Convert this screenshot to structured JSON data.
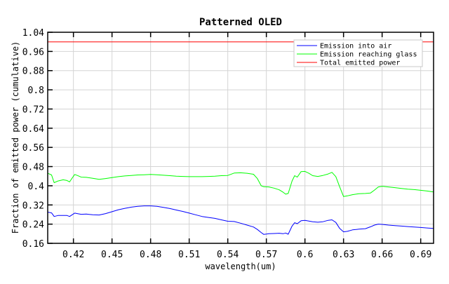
{
  "chart_data": {
    "type": "line",
    "title": "Patterned OLED",
    "xlabel": "wavelength(um)",
    "ylabel": "Fraction of emitted power (cumulative)",
    "xlim": [
      0.4,
      0.7
    ],
    "ylim": [
      0.16,
      1.04
    ],
    "xticks": [
      0.42,
      0.45,
      0.48,
      0.51,
      0.54,
      0.57,
      0.6,
      0.63,
      0.66,
      0.69
    ],
    "xtick_labels": [
      "0.42",
      "0.45",
      "0.48",
      "0.51",
      "0.54",
      "0.57",
      "0.6",
      "0.63",
      "0.66",
      "0.69"
    ],
    "yticks": [
      0.16,
      0.24,
      0.32,
      0.4,
      0.48,
      0.56,
      0.64,
      0.72,
      0.8,
      0.88,
      0.96,
      1.04
    ],
    "ytick_labels": [
      "0.16",
      "0.24",
      "0.32",
      "0.4",
      "0.48",
      "0.56",
      "0.64",
      "0.72",
      "0.8",
      "0.88",
      "0.96",
      "1.04"
    ],
    "grid": true,
    "legend_position": "upper right",
    "series": [
      {
        "name": "Emission into air",
        "color": "#0000ff",
        "x": [
          0.4,
          0.403,
          0.405,
          0.408,
          0.412,
          0.415,
          0.417,
          0.419,
          0.421,
          0.423,
          0.426,
          0.43,
          0.435,
          0.44,
          0.445,
          0.45,
          0.455,
          0.46,
          0.465,
          0.47,
          0.475,
          0.48,
          0.485,
          0.49,
          0.495,
          0.5,
          0.505,
          0.51,
          0.515,
          0.52,
          0.525,
          0.53,
          0.535,
          0.54,
          0.545,
          0.55,
          0.555,
          0.56,
          0.563,
          0.566,
          0.568,
          0.572,
          0.576,
          0.58,
          0.583,
          0.585,
          0.587,
          0.59,
          0.592,
          0.594,
          0.597,
          0.6,
          0.603,
          0.606,
          0.61,
          0.614,
          0.618,
          0.621,
          0.624,
          0.627,
          0.63,
          0.633,
          0.637,
          0.642,
          0.647,
          0.651,
          0.654,
          0.657,
          0.66,
          0.665,
          0.67,
          0.675,
          0.68,
          0.685,
          0.69,
          0.695,
          0.7
        ],
        "y": [
          0.29,
          0.287,
          0.272,
          0.276,
          0.276,
          0.276,
          0.272,
          0.279,
          0.286,
          0.284,
          0.281,
          0.282,
          0.279,
          0.278,
          0.284,
          0.292,
          0.3,
          0.306,
          0.311,
          0.314,
          0.316,
          0.316,
          0.314,
          0.31,
          0.305,
          0.299,
          0.293,
          0.286,
          0.279,
          0.272,
          0.268,
          0.264,
          0.258,
          0.252,
          0.251,
          0.244,
          0.236,
          0.228,
          0.218,
          0.205,
          0.197,
          0.2,
          0.201,
          0.202,
          0.2,
          0.203,
          0.198,
          0.232,
          0.246,
          0.242,
          0.254,
          0.256,
          0.253,
          0.25,
          0.248,
          0.25,
          0.256,
          0.258,
          0.247,
          0.222,
          0.208,
          0.21,
          0.216,
          0.219,
          0.221,
          0.229,
          0.236,
          0.24,
          0.239,
          0.236,
          0.234,
          0.232,
          0.23,
          0.228,
          0.226,
          0.224,
          0.222
        ]
      },
      {
        "name": "Emission reaching glass",
        "color": "#00ff00",
        "x": [
          0.4,
          0.403,
          0.405,
          0.408,
          0.412,
          0.415,
          0.417,
          0.419,
          0.421,
          0.423,
          0.426,
          0.43,
          0.435,
          0.44,
          0.445,
          0.45,
          0.455,
          0.46,
          0.465,
          0.47,
          0.475,
          0.48,
          0.485,
          0.49,
          0.495,
          0.5,
          0.505,
          0.51,
          0.515,
          0.52,
          0.525,
          0.53,
          0.535,
          0.54,
          0.545,
          0.55,
          0.555,
          0.56,
          0.563,
          0.566,
          0.568,
          0.572,
          0.576,
          0.58,
          0.583,
          0.585,
          0.587,
          0.59,
          0.592,
          0.594,
          0.597,
          0.6,
          0.603,
          0.606,
          0.61,
          0.614,
          0.618,
          0.621,
          0.624,
          0.627,
          0.63,
          0.633,
          0.637,
          0.642,
          0.647,
          0.651,
          0.654,
          0.657,
          0.66,
          0.665,
          0.67,
          0.675,
          0.68,
          0.685,
          0.69,
          0.695,
          0.7
        ],
        "y": [
          0.452,
          0.445,
          0.413,
          0.42,
          0.425,
          0.422,
          0.416,
          0.432,
          0.447,
          0.443,
          0.436,
          0.435,
          0.431,
          0.427,
          0.43,
          0.434,
          0.438,
          0.441,
          0.443,
          0.445,
          0.446,
          0.447,
          0.446,
          0.444,
          0.442,
          0.44,
          0.439,
          0.438,
          0.438,
          0.438,
          0.439,
          0.44,
          0.442,
          0.443,
          0.453,
          0.454,
          0.452,
          0.448,
          0.43,
          0.4,
          0.396,
          0.395,
          0.39,
          0.383,
          0.373,
          0.365,
          0.368,
          0.42,
          0.442,
          0.436,
          0.459,
          0.46,
          0.452,
          0.442,
          0.439,
          0.443,
          0.449,
          0.456,
          0.438,
          0.395,
          0.355,
          0.358,
          0.363,
          0.367,
          0.368,
          0.37,
          0.382,
          0.395,
          0.398,
          0.395,
          0.392,
          0.389,
          0.386,
          0.384,
          0.381,
          0.378,
          0.374
        ]
      },
      {
        "name": "Total emitted power",
        "color": "#ff0000",
        "x": [
          0.4,
          0.7
        ],
        "y": [
          1.0,
          1.0
        ]
      }
    ]
  }
}
